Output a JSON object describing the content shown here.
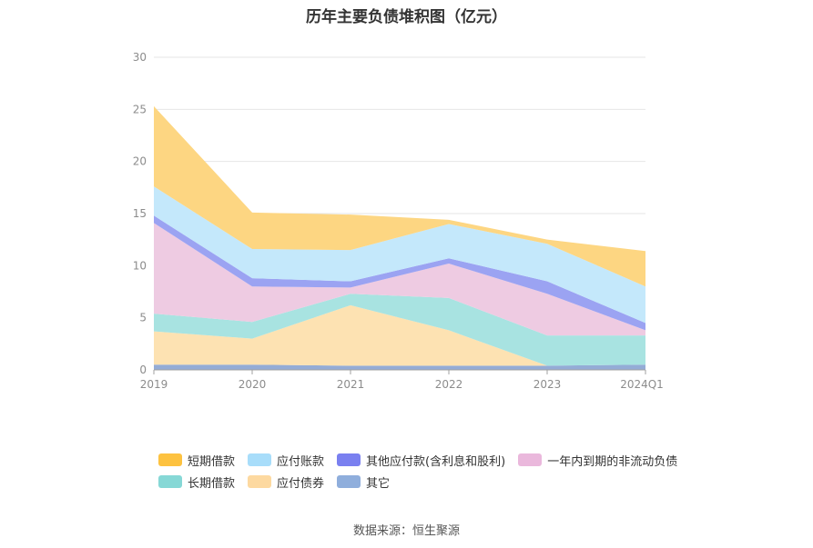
{
  "chart_data": {
    "type": "area",
    "stacked": true,
    "title": "历年主要负债堆积图（亿元）",
    "categories": [
      "2019",
      "2020",
      "2021",
      "2022",
      "2023",
      "2024Q1"
    ],
    "ylim": [
      0,
      30
    ],
    "yticks": [
      "0",
      "5",
      "10",
      "15",
      "20",
      "25",
      "30"
    ],
    "grid": true,
    "legend_position": "bottom",
    "series": [
      {
        "name": "其它",
        "color": "#94acd6",
        "values": [
          0.5,
          0.5,
          0.4,
          0.4,
          0.4,
          0.5
        ]
      },
      {
        "name": "应付债券",
        "color": "#fde2b2",
        "values": [
          3.2,
          2.5,
          5.8,
          3.4,
          0.0,
          0.0
        ]
      },
      {
        "name": "长期借款",
        "color": "#a8e3e1",
        "values": [
          1.7,
          1.6,
          1.1,
          3.1,
          2.9,
          2.8
        ]
      },
      {
        "name": "一年内到期的非流动负债",
        "color": "#eecbe2",
        "values": [
          8.7,
          3.4,
          0.6,
          3.3,
          4.0,
          0.5
        ]
      },
      {
        "name": "其他应付款(含利息和股利)",
        "color": "#9ba3f2",
        "values": [
          0.7,
          0.8,
          0.6,
          0.5,
          1.2,
          0.7
        ]
      },
      {
        "name": "应付账款",
        "color": "#c4e8fb",
        "values": [
          2.8,
          2.8,
          3.0,
          3.3,
          3.6,
          3.5
        ]
      },
      {
        "name": "短期借款",
        "color": "#fdd682",
        "values": [
          7.7,
          3.5,
          3.4,
          0.4,
          0.4,
          3.4
        ]
      }
    ]
  },
  "legend": {
    "rows": [
      [
        {
          "label": "短期借款",
          "color": "#fdc240"
        },
        {
          "label": "应付账款",
          "color": "#a8ddfa"
        },
        {
          "label": "其他应付款(含利息和股利)",
          "color": "#7a80f0"
        },
        {
          "label": "一年内到期的非流动负债",
          "color": "#eab8dc"
        }
      ],
      [
        {
          "label": "长期借款",
          "color": "#86d8d6"
        },
        {
          "label": "应付债券",
          "color": "#fdd9a0"
        },
        {
          "label": "其它",
          "color": "#8faedc"
        }
      ]
    ]
  },
  "source": "数据来源：恒生聚源"
}
